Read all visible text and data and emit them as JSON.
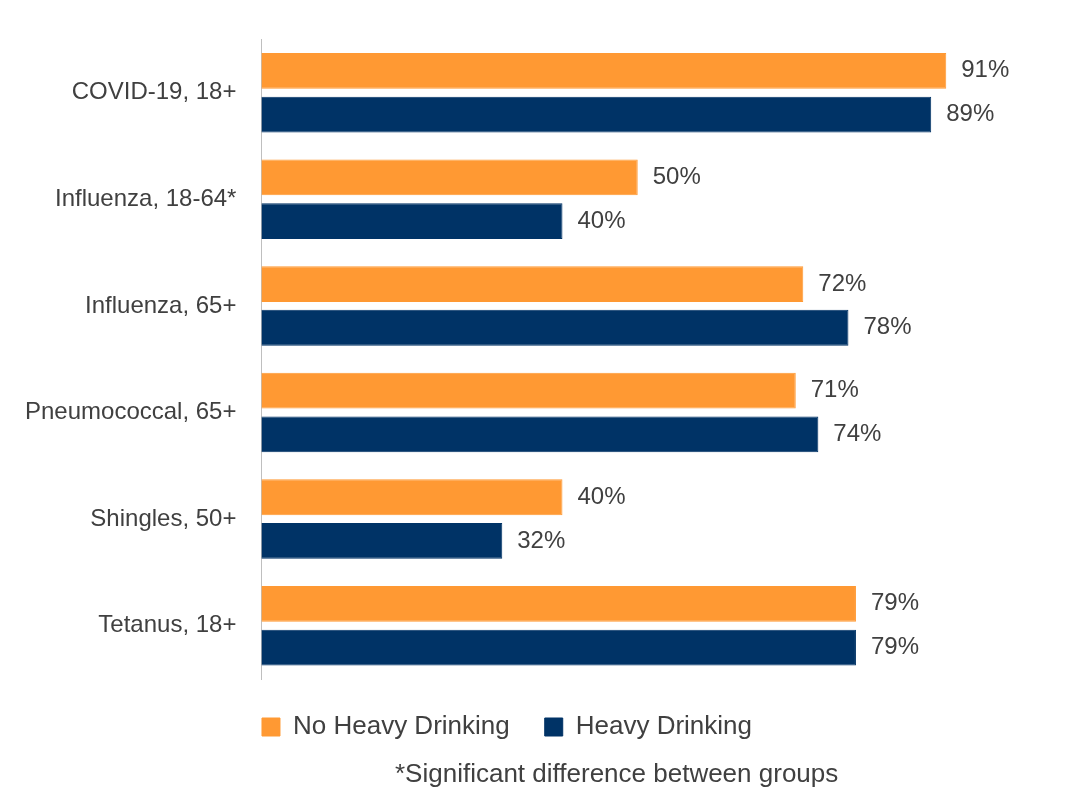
{
  "chart_data": {
    "type": "bar",
    "orientation": "horizontal",
    "categories": [
      "COVID-19, 18+",
      "Influenza, 18-64*",
      "Influenza, 65+",
      "Pneumococcal, 65+",
      "Shingles, 50+",
      "Tetanus, 18+"
    ],
    "series": [
      {
        "name": "No Heavy Drinking",
        "color": "#ff9933",
        "values": [
          91,
          50,
          72,
          71,
          40,
          79
        ],
        "value_labels": [
          "91%",
          "50%",
          "72%",
          "71%",
          "40%",
          "79%"
        ]
      },
      {
        "name": "Heavy Drinking",
        "color": "#003366",
        "values": [
          89,
          40,
          78,
          74,
          32,
          79
        ],
        "value_labels": [
          "89%",
          "40%",
          "78%",
          "74%",
          "32%",
          "79%"
        ]
      }
    ],
    "legend": "bottom",
    "annotations": [
      "*Significant difference between groups"
    ]
  }
}
